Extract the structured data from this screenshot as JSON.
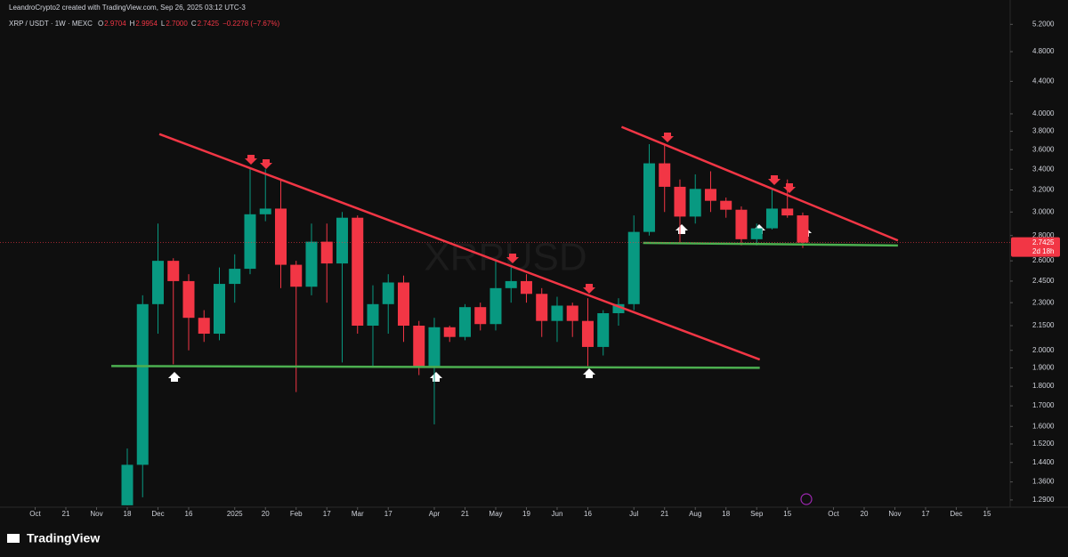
{
  "header": "LeandroCrypto2 created with TradingView.com, Sep 26, 2025 03:12 UTC-3",
  "footer": "TradingView",
  "chart_data": {
    "type": "candlestick",
    "title": "XRP / USDT · 1W · MEXC",
    "watermark": "XRPUSD",
    "ohlc_labels": [
      {
        "key": "O",
        "value": "2.9704"
      },
      {
        "key": "H",
        "value": "2.9954"
      },
      {
        "key": "L",
        "value": "2.7000"
      },
      {
        "key": "C",
        "value": "2.7425"
      }
    ],
    "change": "−0.2278 (−7.67%)",
    "last_price": {
      "value": 2.7425,
      "label": "2.7425",
      "countdown": "2d 18h"
    },
    "up_color": "#089981",
    "down_color": "#f23645",
    "open": [
      1.27,
      1.43,
      2.29,
      2.6,
      2.45,
      2.2,
      2.1,
      2.43,
      2.54,
      2.98,
      3.03,
      2.57,
      2.41,
      2.75,
      2.58,
      2.95,
      2.15,
      2.29,
      2.44,
      2.15,
      1.91,
      2.14,
      2.08,
      2.27,
      2.16,
      2.4,
      2.45,
      2.36,
      2.18,
      2.28,
      2.18,
      2.02,
      2.23,
      2.29,
      2.83,
      3.46,
      3.23,
      2.96,
      3.21,
      3.1,
      3.02,
      2.77,
      2.86,
      3.03,
      2.9704
    ],
    "high": [
      1.5,
      2.35,
      2.9,
      2.62,
      2.5,
      2.25,
      2.55,
      2.65,
      3.42,
      3.4,
      3.3,
      2.6,
      2.9,
      2.9,
      3.0,
      2.97,
      2.42,
      2.5,
      2.49,
      2.18,
      2.2,
      2.15,
      2.29,
      2.3,
      2.6,
      2.55,
      2.5,
      2.4,
      2.34,
      2.3,
      2.33,
      2.25,
      2.33,
      2.97,
      3.66,
      3.65,
      3.3,
      3.35,
      3.38,
      3.13,
      3.05,
      2.9,
      3.2,
      3.3,
      2.9954
    ],
    "low": [
      1.27,
      1.3,
      2.1,
      1.92,
      2.0,
      2.05,
      2.06,
      2.3,
      2.5,
      2.92,
      2.4,
      1.77,
      2.35,
      2.3,
      1.93,
      2.1,
      1.91,
      2.1,
      2.05,
      1.86,
      1.61,
      2.05,
      2.06,
      2.12,
      2.12,
      2.3,
      2.3,
      2.08,
      2.05,
      2.08,
      1.91,
      1.97,
      2.15,
      2.25,
      2.8,
      3.0,
      2.74,
      2.9,
      3.0,
      2.95,
      2.72,
      2.72,
      2.85,
      2.95,
      2.7
    ],
    "close": [
      1.43,
      2.29,
      2.6,
      2.45,
      2.2,
      2.1,
      2.43,
      2.54,
      2.98,
      3.03,
      2.57,
      2.41,
      2.75,
      2.58,
      2.95,
      2.15,
      2.29,
      2.44,
      2.15,
      1.91,
      2.14,
      2.08,
      2.27,
      2.16,
      2.4,
      2.45,
      2.36,
      2.18,
      2.28,
      2.18,
      2.02,
      2.23,
      2.29,
      2.83,
      3.46,
      3.23,
      2.96,
      3.21,
      3.1,
      3.02,
      2.77,
      2.86,
      3.03,
      2.97,
      2.7425
    ],
    "log_scale": true,
    "ylim": [
      1.263,
      5.37
    ],
    "yticks": [
      {
        "value": 5.2,
        "label": "5.2000"
      },
      {
        "value": 4.8,
        "label": "4.8000"
      },
      {
        "value": 4.4,
        "label": "4.4000"
      },
      {
        "value": 4.0,
        "label": "4.0000"
      },
      {
        "value": 3.8,
        "label": "3.8000"
      },
      {
        "value": 3.6,
        "label": "3.6000"
      },
      {
        "value": 3.4,
        "label": "3.4000"
      },
      {
        "value": 3.2,
        "label": "3.2000"
      },
      {
        "value": 3.0,
        "label": "3.0000"
      },
      {
        "value": 2.8,
        "label": "2.8000"
      },
      {
        "value": 2.6,
        "label": "2.6000"
      },
      {
        "value": 2.45,
        "label": "2.4500"
      },
      {
        "value": 2.3,
        "label": "2.3000"
      },
      {
        "value": 2.15,
        "label": "2.1500"
      },
      {
        "value": 2.0,
        "label": "2.0000"
      },
      {
        "value": 1.9,
        "label": "1.9000"
      },
      {
        "value": 1.8,
        "label": "1.8000"
      },
      {
        "value": 1.7,
        "label": "1.7000"
      },
      {
        "value": 1.6,
        "label": "1.6000"
      },
      {
        "value": 1.52,
        "label": "1.5200"
      },
      {
        "value": 1.44,
        "label": "1.4400"
      },
      {
        "value": 1.36,
        "label": "1.3600"
      },
      {
        "value": 1.29,
        "label": "1.2900"
      }
    ],
    "xlim": [
      -8.29,
      57.51
    ],
    "xticks": [
      {
        "value": -6,
        "label": "Oct"
      },
      {
        "value": -4,
        "label": "21"
      },
      {
        "value": -2,
        "label": "Nov"
      },
      {
        "value": 0,
        "label": "18"
      },
      {
        "value": 2,
        "label": "Dec"
      },
      {
        "value": 4,
        "label": "16"
      },
      {
        "value": 7,
        "label": "2025"
      },
      {
        "value": 9,
        "label": "20"
      },
      {
        "value": 11,
        "label": "Feb"
      },
      {
        "value": 13,
        "label": "17"
      },
      {
        "value": 15,
        "label": "Mar"
      },
      {
        "value": 17,
        "label": "17"
      },
      {
        "value": 20,
        "label": "Apr"
      },
      {
        "value": 22,
        "label": "21"
      },
      {
        "value": 24,
        "label": "May"
      },
      {
        "value": 26,
        "label": "19"
      },
      {
        "value": 28,
        "label": "Jun"
      },
      {
        "value": 30,
        "label": "16"
      },
      {
        "value": 33,
        "label": "Jul"
      },
      {
        "value": 35,
        "label": "21"
      },
      {
        "value": 37,
        "label": "Aug"
      },
      {
        "value": 39,
        "label": "18"
      },
      {
        "value": 41,
        "label": "Sep"
      },
      {
        "value": 43,
        "label": "15"
      },
      {
        "value": 46,
        "label": "Oct"
      },
      {
        "value": 48,
        "label": "20"
      },
      {
        "value": 50,
        "label": "Nov"
      },
      {
        "value": 52,
        "label": "17"
      },
      {
        "value": 54,
        "label": "Dec"
      },
      {
        "value": 56,
        "label": "15"
      }
    ],
    "grid": false,
    "trendlines": [
      {
        "color": "#f23645",
        "x": [
          2.09,
          41.2
        ],
        "y": [
          3.77,
          1.947
        ]
      },
      {
        "color": "#f23645",
        "x": [
          32.2,
          50.2
        ],
        "y": [
          3.85,
          2.76
        ]
      },
      {
        "color": "#4caf50",
        "x": [
          -1.04,
          41.2
        ],
        "y": [
          1.91,
          1.9
        ]
      },
      {
        "color": "#4caf50",
        "x": [
          33.6,
          50.2
        ],
        "y": [
          2.74,
          2.72
        ]
      }
    ]
  }
}
